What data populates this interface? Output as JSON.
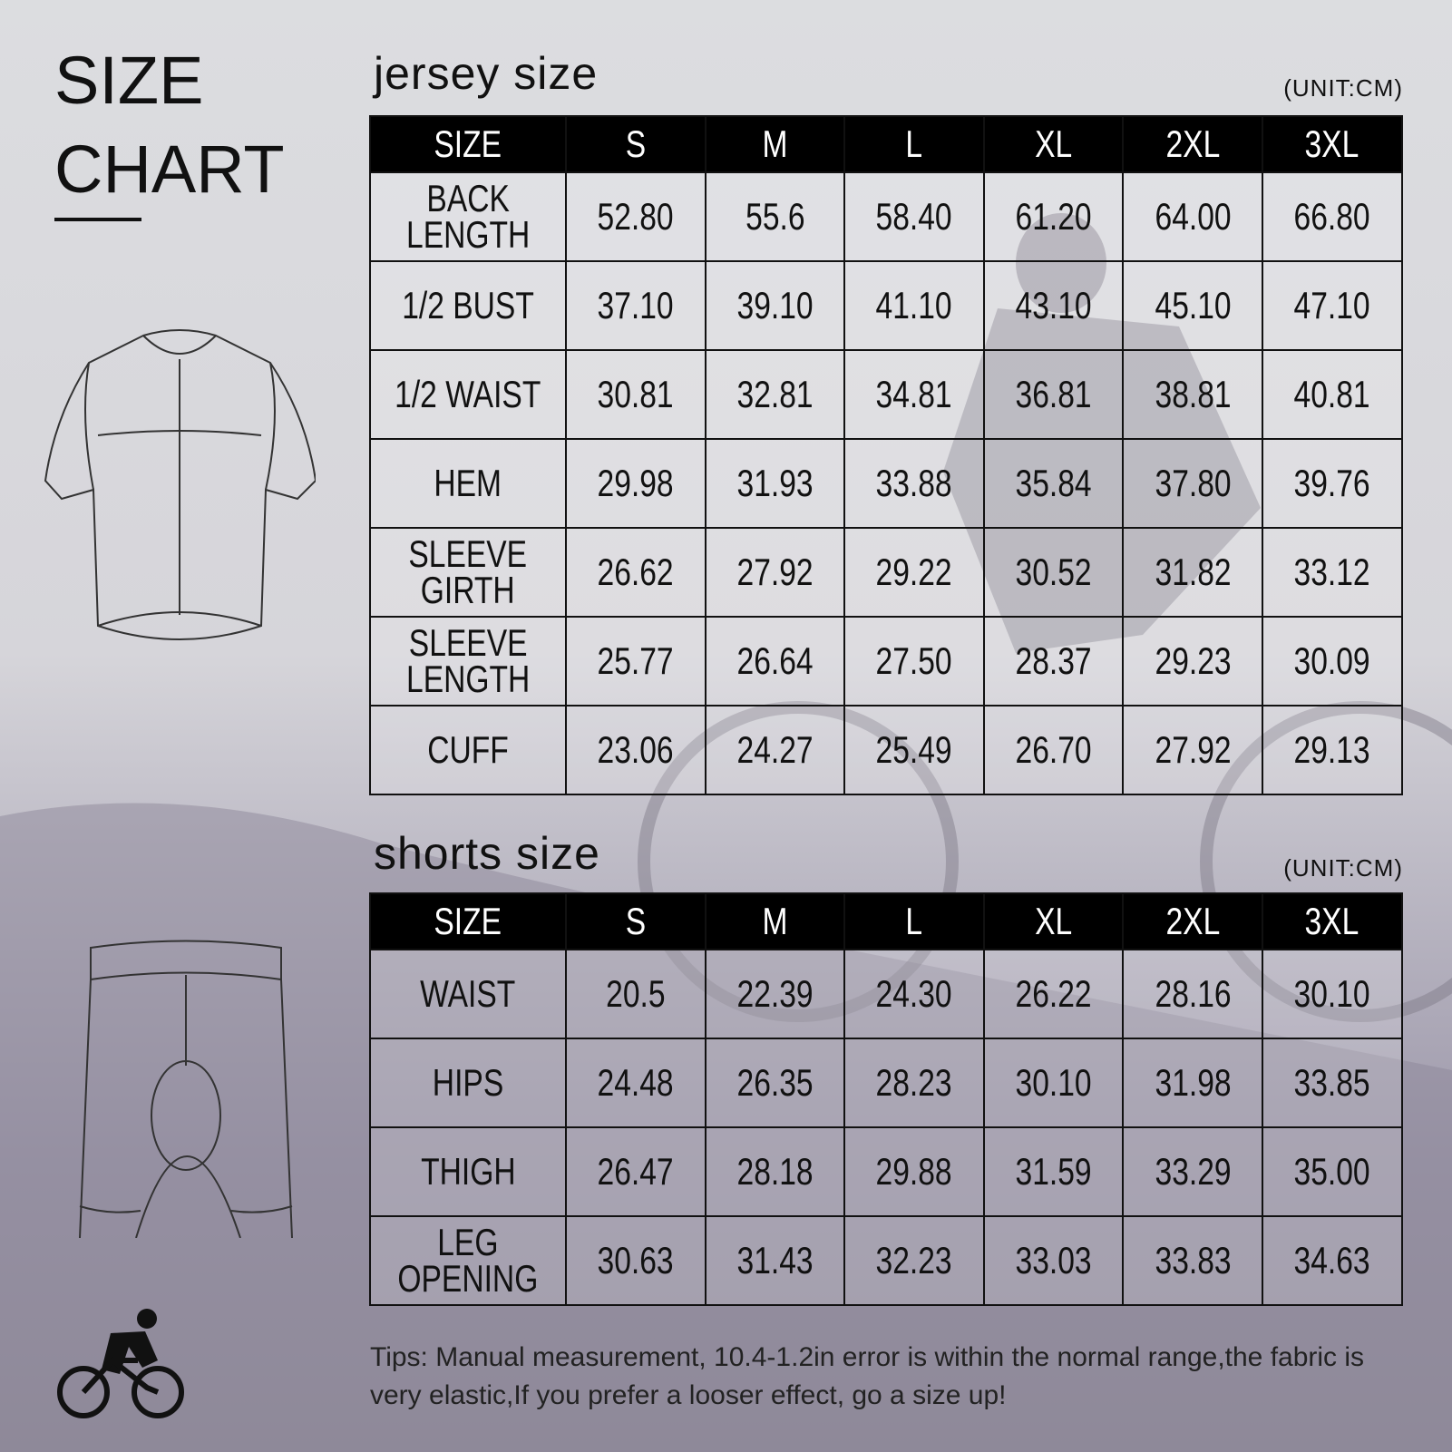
{
  "header": {
    "title_lines": [
      "SIZE",
      "CHART"
    ]
  },
  "tables": [
    {
      "title": "jersey size",
      "unit": "(UNIT:CM)",
      "columns": [
        "SIZE",
        "S",
        "M",
        "L",
        "XL",
        "2XL",
        "3XL"
      ],
      "rows": [
        {
          "label": "BACK\nLENGTH",
          "values": [
            "52.80",
            "55.6",
            "58.40",
            "61.20",
            "64.00",
            "66.80"
          ]
        },
        {
          "label": "1/2 BUST",
          "values": [
            "37.10",
            "39.10",
            "41.10",
            "43.10",
            "45.10",
            "47.10"
          ]
        },
        {
          "label": "1/2 WAIST",
          "values": [
            "30.81",
            "32.81",
            "34.81",
            "36.81",
            "38.81",
            "40.81"
          ]
        },
        {
          "label": "HEM",
          "values": [
            "29.98",
            "31.93",
            "33.88",
            "35.84",
            "37.80",
            "39.76"
          ]
        },
        {
          "label": "SLEEVE\nGIRTH",
          "values": [
            "26.62",
            "27.92",
            "29.22",
            "30.52",
            "31.82",
            "33.12"
          ]
        },
        {
          "label": "SLEEVE\nLENGTH",
          "values": [
            "25.77",
            "26.64",
            "27.50",
            "28.37",
            "29.23",
            "30.09"
          ]
        },
        {
          "label": "CUFF",
          "values": [
            "23.06",
            "24.27",
            "25.49",
            "26.70",
            "27.92",
            "29.13"
          ]
        }
      ]
    },
    {
      "title": "shorts size",
      "unit": "(UNIT:CM)",
      "columns": [
        "SIZE",
        "S",
        "M",
        "L",
        "XL",
        "2XL",
        "3XL"
      ],
      "rows": [
        {
          "label": "WAIST",
          "values": [
            "20.5",
            "22.39",
            "24.30",
            "26.22",
            "28.16",
            "30.10"
          ]
        },
        {
          "label": "HIPS",
          "values": [
            "24.48",
            "26.35",
            "28.23",
            "30.10",
            "31.98",
            "33.85"
          ]
        },
        {
          "label": "THIGH",
          "values": [
            "26.47",
            "28.18",
            "29.88",
            "31.59",
            "33.29",
            "35.00"
          ]
        },
        {
          "label": "LEG\nOPENING",
          "values": [
            "30.63",
            "31.43",
            "32.23",
            "33.03",
            "33.83",
            "34.63"
          ]
        }
      ]
    }
  ],
  "tips": "Tips: Manual measurement, 10.4-1.2in error is within the normal range,the fabric is very elastic,If you prefer a looser effect, go a size up!"
}
